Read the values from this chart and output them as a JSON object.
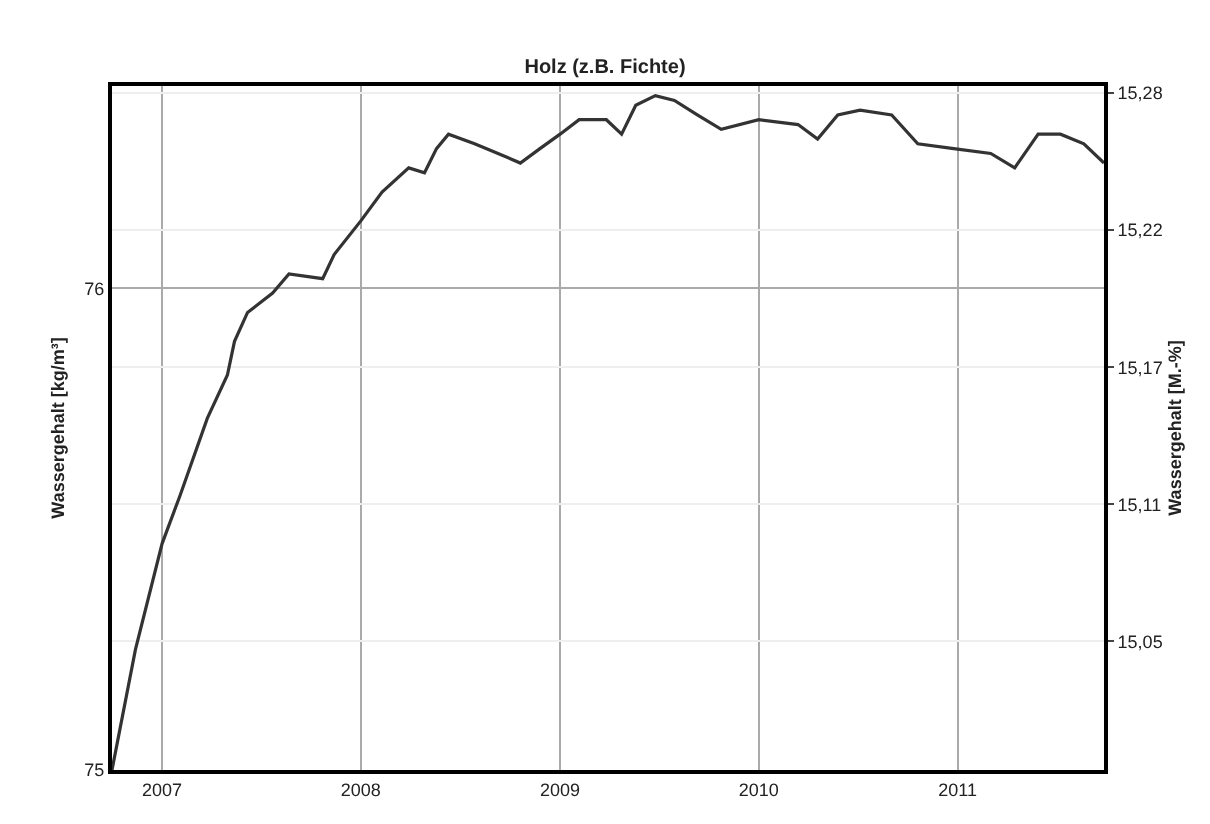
{
  "chart_data": {
    "type": "line",
    "title": "Holz (z.B. Fichte)",
    "ylabel": "Wassergehalt [kg/m³]",
    "y2label": "Wassergehalt [M.-%]",
    "x": [
      "2006-10-01",
      "2006-11-13",
      "2007-01-01",
      "2007-02-03",
      "2007-03-25",
      "2007-05-01",
      "2007-05-14",
      "2007-06-07",
      "2007-07-23",
      "2007-08-22",
      "2007-10-23",
      "2007-11-13",
      "2008-01-01",
      "2008-02-09",
      "2008-03-29",
      "2008-04-27",
      "2008-05-19",
      "2008-06-10",
      "2008-07-28",
      "2008-09-09",
      "2008-10-20",
      "2008-11-25",
      "2009-01-01",
      "2009-02-05",
      "2009-03-27",
      "2009-04-24",
      "2009-05-20",
      "2009-06-25",
      "2009-07-30",
      "2009-09-10",
      "2009-10-24",
      "2010-01-01",
      "2010-03-14",
      "2010-04-19",
      "2010-05-26",
      "2010-07-06",
      "2010-09-02",
      "2010-10-20",
      "2010-12-25",
      "2011-03-03",
      "2011-04-16",
      "2011-05-29",
      "2011-07-09",
      "2011-08-21",
      "2011-09-27"
    ],
    "series": [
      {
        "color": "#333333",
        "values": [
          75.0,
          75.25,
          75.47,
          75.57,
          75.73,
          75.82,
          75.89,
          75.95,
          75.99,
          76.03,
          76.02,
          76.07,
          76.14,
          76.2,
          76.25,
          76.24,
          76.29,
          76.32,
          76.3,
          76.28,
          76.26,
          76.29,
          76.32,
          76.35,
          76.35,
          76.32,
          76.38,
          76.4,
          76.39,
          76.36,
          76.33,
          76.35,
          76.34,
          76.31,
          76.36,
          76.37,
          76.36,
          76.3,
          76.29,
          76.28,
          76.25,
          76.32,
          76.32,
          76.3,
          76.26
        ]
      }
    ],
    "xlim": [
      "2006-10-01",
      "2011-09-27"
    ],
    "xticks": [
      "2007",
      "2008",
      "2009",
      "2010",
      "2011"
    ],
    "ylim": [
      75,
      76.42
    ],
    "yticks": [
      75,
      76
    ],
    "y2lim": [
      14.996,
      15.283
    ],
    "y2ticks": [
      {
        "value": 15.05,
        "label": "15,05"
      },
      {
        "value": 15.1075,
        "label": "15,11"
      },
      {
        "value": 15.165,
        "label": "15,17"
      },
      {
        "value": 15.2225,
        "label": "15,22"
      },
      {
        "value": 15.28,
        "label": "15,28"
      }
    ],
    "grid": true,
    "marker": "none",
    "line_style": "solid"
  }
}
